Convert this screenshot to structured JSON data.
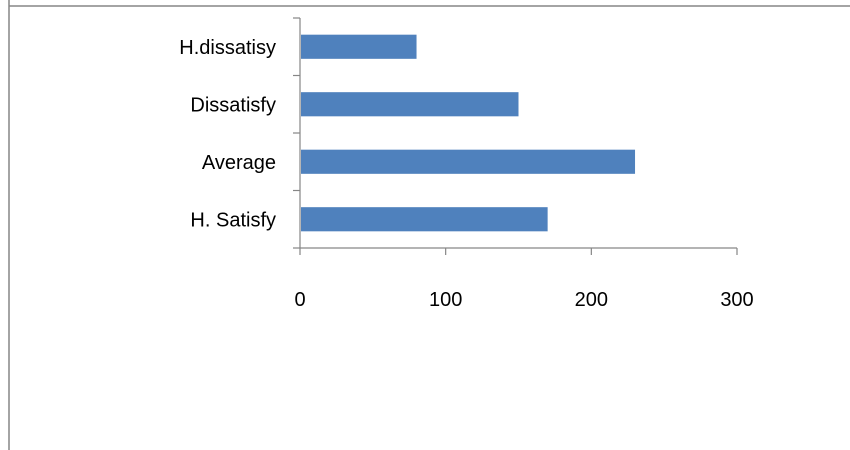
{
  "chart_data": {
    "type": "bar",
    "orientation": "horizontal",
    "title": "",
    "xlabel": "",
    "ylabel": "",
    "categories": [
      "H.dissatisy",
      "Dissatisfy",
      "Average",
      "H. Satisfy"
    ],
    "values": [
      80,
      150,
      230,
      170
    ],
    "xlim": [
      0,
      300
    ],
    "xticks": [
      0,
      100,
      200,
      300
    ],
    "xtick_labels": [
      "0",
      "100",
      "200",
      "300"
    ],
    "grid": false,
    "legend": "none",
    "colors": {
      "bar": "#4f81bd",
      "axis": "#868686",
      "border": "#868686",
      "text": "#000000"
    }
  }
}
